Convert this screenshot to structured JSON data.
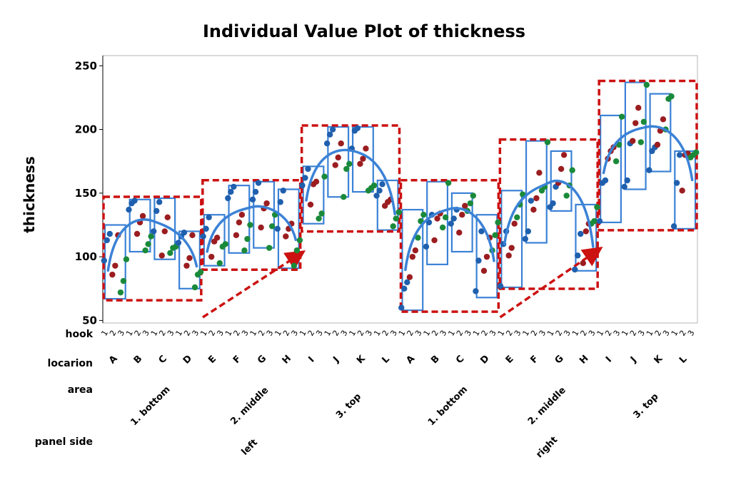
{
  "chart_data": {
    "type": "scatter",
    "title": "Individual Value Plot of thickness",
    "ylabel": "thickness",
    "ylim": [
      48,
      258
    ],
    "yticks": [
      50,
      100,
      150,
      200,
      250
    ],
    "grid": false,
    "row_labels": [
      "hook",
      "locarion",
      "area",
      "panel side"
    ],
    "hooks": [
      "1",
      "2",
      "3"
    ],
    "locations": [
      "A",
      "B",
      "C",
      "D",
      "E",
      "F",
      "G",
      "H",
      "I",
      "J",
      "K",
      "L",
      "A",
      "B",
      "C",
      "D",
      "E",
      "F",
      "G",
      "H",
      "I",
      "J",
      "K",
      "L"
    ],
    "areas": [
      "1. bottom",
      "2. middle",
      "3. top",
      "1. bottom",
      "2. middle",
      "3. top"
    ],
    "panel_sides": [
      "left",
      "right"
    ],
    "colors": {
      "hook1": "#1f5fad",
      "hook2": "#9b1d20",
      "hook3": "#1a8a3a",
      "box": "#3b82d6",
      "dashed": "#cc1111"
    },
    "groups": [
      {
        "location": "A",
        "side": "left",
        "ranges": {
          "min": 67,
          "max": 125
        },
        "hook1": [
          97,
          113,
          118
        ],
        "hook2": [
          86,
          93,
          117
        ],
        "hook3": [
          72,
          81,
          98
        ]
      },
      {
        "location": "B",
        "side": "left",
        "ranges": {
          "min": 104,
          "max": 145
        },
        "hook1": [
          137,
          142,
          144
        ],
        "hook2": [
          118,
          127,
          132
        ],
        "hook3": [
          105,
          110,
          116
        ]
      },
      {
        "location": "C",
        "side": "left",
        "ranges": {
          "min": 98,
          "max": 146
        },
        "hook1": [
          120,
          136,
          143
        ],
        "hook2": [
          101,
          120,
          131
        ],
        "hook3": [
          103,
          107,
          108
        ]
      },
      {
        "location": "D",
        "side": "left",
        "ranges": {
          "min": 75,
          "max": 120
        },
        "hook1": [
          111,
          116,
          119
        ],
        "hook2": [
          93,
          99,
          117
        ],
        "hook3": [
          76,
          86,
          88
        ]
      },
      {
        "location": "E",
        "side": "left",
        "ranges": {
          "min": 93,
          "max": 133
        },
        "hook1": [
          116,
          122,
          131
        ],
        "hook2": [
          100,
          112,
          115
        ],
        "hook3": [
          95,
          108,
          110
        ]
      },
      {
        "location": "F",
        "side": "left",
        "ranges": {
          "min": 103,
          "max": 156
        },
        "hook1": [
          146,
          151,
          155
        ],
        "hook2": [
          117,
          127,
          133
        ],
        "hook3": [
          105,
          114,
          125
        ]
      },
      {
        "location": "G",
        "side": "left",
        "ranges": {
          "min": 107,
          "max": 159
        },
        "hook1": [
          145,
          151,
          158
        ],
        "hook2": [
          123,
          138,
          142
        ],
        "hook3": [
          107,
          124,
          133
        ]
      },
      {
        "location": "H",
        "side": "left",
        "ranges": {
          "min": 91,
          "max": 153
        },
        "hook1": [
          122,
          143,
          152
        ],
        "hook2": [
          116,
          122,
          126
        ],
        "hook3": [
          93,
          105,
          113
        ]
      },
      {
        "location": "I",
        "side": "left",
        "ranges": {
          "min": 126,
          "max": 171
        },
        "hook1": [
          156,
          162,
          169
        ],
        "hook2": [
          141,
          157,
          159
        ],
        "hook3": [
          130,
          134,
          163
        ]
      },
      {
        "location": "J",
        "side": "left",
        "ranges": {
          "min": 147,
          "max": 202
        },
        "hook1": [
          189,
          196,
          200
        ],
        "hook2": [
          172,
          178,
          189
        ],
        "hook3": [
          147,
          169,
          173
        ]
      },
      {
        "location": "K",
        "side": "left",
        "ranges": {
          "min": 151,
          "max": 202
        },
        "hook1": [
          185,
          199,
          201
        ],
        "hook2": [
          173,
          177,
          185
        ],
        "hook3": [
          152,
          154,
          156
        ]
      },
      {
        "location": "L",
        "side": "left",
        "ranges": {
          "min": 121,
          "max": 160
        },
        "hook1": [
          148,
          152,
          157
        ],
        "hook2": [
          140,
          143,
          145
        ],
        "hook3": [
          124,
          130,
          135
        ]
      },
      {
        "location": "A",
        "side": "right",
        "ranges": {
          "min": 58,
          "max": 137
        },
        "hook1": [
          60,
          75,
          80
        ],
        "hook2": [
          84,
          100,
          105
        ],
        "hook3": [
          115,
          128,
          133
        ]
      },
      {
        "location": "B",
        "side": "right",
        "ranges": {
          "min": 94,
          "max": 159
        },
        "hook1": [
          108,
          127,
          133
        ],
        "hook2": [
          113,
          130,
          134
        ],
        "hook3": [
          123,
          131,
          158
        ]
      },
      {
        "location": "C",
        "side": "right",
        "ranges": {
          "min": 104,
          "max": 150
        },
        "hook1": [
          126,
          130,
          137
        ],
        "hook2": [
          119,
          133,
          140
        ],
        "hook3": [
          136,
          142,
          148
        ]
      },
      {
        "location": "D",
        "side": "right",
        "ranges": {
          "min": 68,
          "max": 133
        },
        "hook1": [
          73,
          97,
          120
        ],
        "hook2": [
          89,
          100,
          115
        ],
        "hook3": [
          105,
          117,
          127
        ]
      },
      {
        "location": "E",
        "side": "right",
        "ranges": {
          "min": 76,
          "max": 152
        },
        "hook1": [
          77,
          110,
          120
        ],
        "hook2": [
          101,
          107,
          126
        ],
        "hook3": [
          131,
          141,
          149
        ]
      },
      {
        "location": "F",
        "side": "right",
        "ranges": {
          "min": 111,
          "max": 191
        },
        "hook1": [
          114,
          120,
          144
        ],
        "hook2": [
          137,
          146,
          166
        ],
        "hook3": [
          152,
          155,
          190
        ]
      },
      {
        "location": "G",
        "side": "right",
        "ranges": {
          "min": 136,
          "max": 183
        },
        "hook1": [
          139,
          142,
          155
        ],
        "hook2": [
          158,
          169,
          180
        ],
        "hook3": [
          148,
          156,
          168
        ]
      },
      {
        "location": "H",
        "side": "right",
        "ranges": {
          "min": 89,
          "max": 141
        },
        "hook1": [
          90,
          101,
          118
        ],
        "hook2": [
          95,
          120,
          126
        ],
        "hook3": [
          126,
          128,
          139
        ]
      },
      {
        "location": "I",
        "side": "right",
        "ranges": {
          "min": 127,
          "max": 211
        },
        "hook1": [
          128,
          158,
          160
        ],
        "hook2": [
          177,
          183,
          186
        ],
        "hook3": [
          175,
          188,
          210
        ]
      },
      {
        "location": "J",
        "side": "right",
        "ranges": {
          "min": 153,
          "max": 237
        },
        "hook1": [
          155,
          160,
          189
        ],
        "hook2": [
          191,
          205,
          217
        ],
        "hook3": [
          190,
          206,
          235
        ]
      },
      {
        "location": "K",
        "side": "right",
        "ranges": {
          "min": 167,
          "max": 228
        },
        "hook1": [
          168,
          183,
          186
        ],
        "hook2": [
          188,
          199,
          208
        ],
        "hook3": [
          200,
          224,
          226
        ]
      },
      {
        "location": "L",
        "side": "right",
        "ranges": {
          "min": 122,
          "max": 183
        },
        "hook1": [
          124,
          158,
          180
        ],
        "hook2": [
          152,
          180,
          181
        ],
        "hook3": [
          178,
          180,
          182
        ]
      }
    ]
  }
}
